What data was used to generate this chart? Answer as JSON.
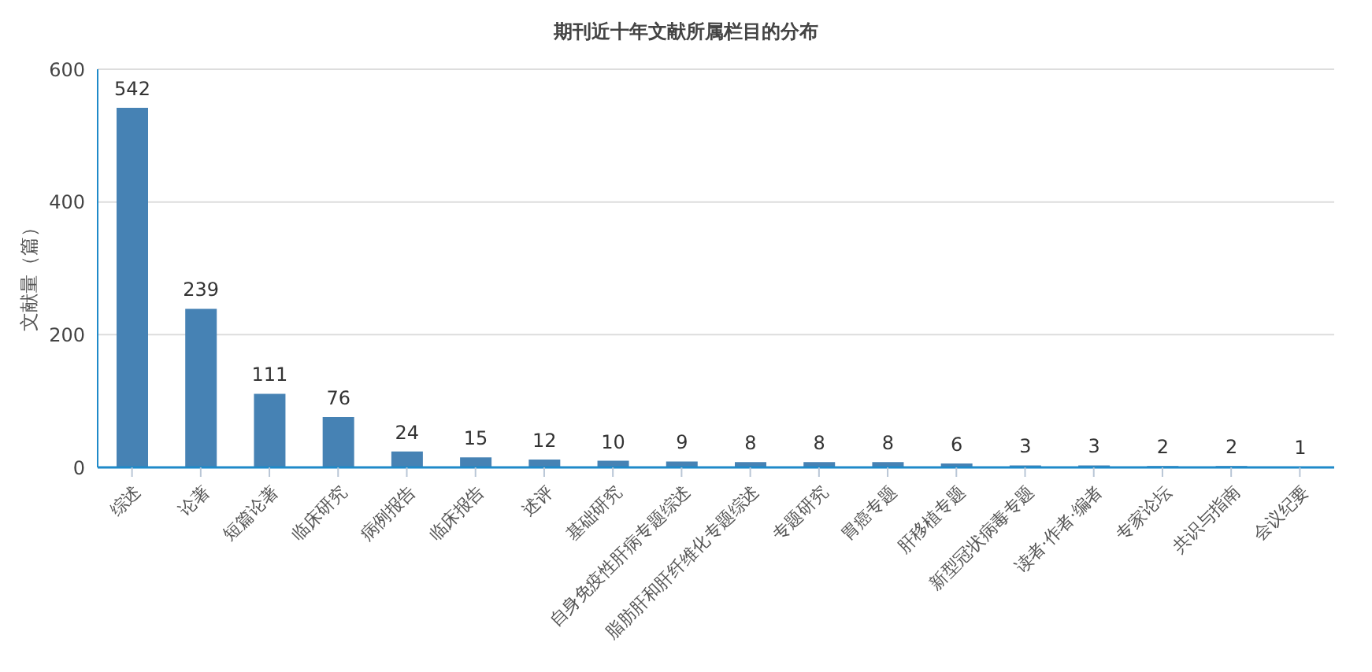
{
  "chart_data": {
    "type": "bar",
    "title": "期刊近十年文献所属栏目的分布",
    "ylabel": "文献量（篇）",
    "categories": [
      "综述",
      "论著",
      "短篇论著",
      "临床研究",
      "病例报告",
      "临床报告",
      "述评",
      "基础研究",
      "自身免疫性肝病专题综述",
      "脂肪肝和肝纤维化专题综述",
      "专题研究",
      "胃癌专题",
      "肝移植专题",
      "新型冠状病毒专题",
      "读者·作者·编者",
      "专家论坛",
      "共识与指南",
      "会议纪要"
    ],
    "values": [
      542,
      239,
      111,
      76,
      24,
      15,
      12,
      10,
      9,
      8,
      8,
      8,
      6,
      3,
      3,
      2,
      2,
      1
    ],
    "color": "#4682b4",
    "ylim": [
      0,
      600
    ],
    "yticks": [
      0,
      200,
      400,
      600
    ],
    "grid": "y",
    "data_labels": true
  }
}
